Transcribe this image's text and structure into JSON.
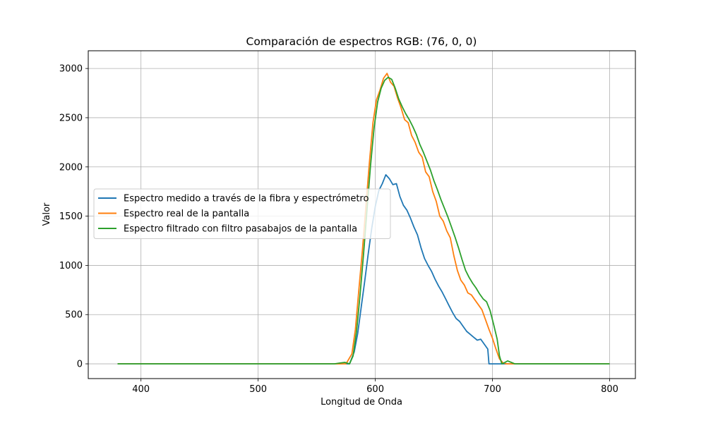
{
  "chart_data": {
    "type": "line",
    "title": "Comparación de espectros RGB: (76, 0, 0)",
    "xlabel": "Longitud de Onda",
    "ylabel": "Valor",
    "xlim": [
      355,
      822
    ],
    "ylim": [
      -150,
      3180
    ],
    "xticks": [
      400,
      500,
      600,
      700,
      800
    ],
    "yticks": [
      0,
      500,
      1000,
      1500,
      2000,
      2500,
      3000
    ],
    "xtick_labels": [
      "400",
      "500",
      "600",
      "700",
      "800"
    ],
    "ytick_labels": [
      "0",
      "500",
      "1000",
      "1500",
      "2000",
      "2500",
      "3000"
    ],
    "grid": true,
    "legend_position": "center-left",
    "series": [
      {
        "name": "Espectro medido a través de la fibra y espectrómetro",
        "color": "#1f77b4",
        "x": [
          380,
          570,
          578,
          582,
          585,
          588,
          591,
          594,
          597,
          600,
          603,
          606,
          609,
          612,
          615,
          618,
          621,
          624,
          627,
          630,
          633,
          636,
          639,
          642,
          645,
          648,
          651,
          654,
          657,
          660,
          663,
          666,
          669,
          672,
          675,
          678,
          681,
          684,
          687,
          690,
          693,
          696,
          697,
          800
        ],
        "y": [
          0,
          0,
          0,
          120,
          310,
          580,
          840,
          1120,
          1380,
          1600,
          1760,
          1830,
          1920,
          1880,
          1820,
          1830,
          1700,
          1610,
          1560,
          1480,
          1390,
          1310,
          1180,
          1070,
          1000,
          940,
          860,
          790,
          730,
          660,
          590,
          520,
          460,
          430,
          380,
          330,
          300,
          270,
          240,
          250,
          200,
          150,
          0,
          0
        ]
      },
      {
        "name": "Espectro real de la pantalla",
        "color": "#ff7f0e",
        "x": [
          380,
          575,
          580,
          583,
          586,
          589,
          592,
          595,
          598,
          601,
          604,
          607,
          610,
          613,
          616,
          619,
          622,
          625,
          628,
          631,
          634,
          637,
          640,
          643,
          646,
          649,
          652,
          655,
          658,
          661,
          664,
          667,
          670,
          673,
          676,
          679,
          682,
          685,
          688,
          691,
          694,
          697,
          700,
          703,
          706,
          709,
          712,
          715,
          800
        ],
        "y": [
          0,
          0,
          100,
          350,
          760,
          1150,
          1600,
          2050,
          2450,
          2680,
          2780,
          2900,
          2950,
          2860,
          2820,
          2700,
          2600,
          2480,
          2450,
          2320,
          2250,
          2150,
          2100,
          1950,
          1900,
          1750,
          1650,
          1500,
          1450,
          1350,
          1280,
          1100,
          950,
          850,
          800,
          720,
          700,
          650,
          600,
          550,
          450,
          350,
          260,
          150,
          50,
          10,
          0,
          0,
          0
        ]
      },
      {
        "name": "Espectro filtrado con filtro pasabajos de la pantalla",
        "color": "#2ca02c",
        "x": [
          380,
          565,
          570,
          574,
          578,
          581,
          584,
          587,
          590,
          593,
          596,
          599,
          602,
          605,
          608,
          611,
          614,
          617,
          620,
          623,
          626,
          629,
          632,
          635,
          638,
          641,
          644,
          647,
          650,
          653,
          656,
          659,
          662,
          665,
          668,
          671,
          674,
          677,
          680,
          683,
          686,
          689,
          692,
          695,
          698,
          701,
          704,
          706,
          708,
          710,
          713,
          716,
          719,
          800
        ],
        "y": [
          0,
          0,
          8,
          15,
          0,
          80,
          330,
          700,
          1120,
          1580,
          2020,
          2400,
          2660,
          2800,
          2880,
          2910,
          2890,
          2800,
          2690,
          2610,
          2540,
          2480,
          2410,
          2330,
          2230,
          2150,
          2060,
          1970,
          1860,
          1770,
          1670,
          1580,
          1490,
          1390,
          1290,
          1180,
          1060,
          950,
          880,
          820,
          770,
          710,
          660,
          630,
          540,
          400,
          250,
          80,
          0,
          10,
          30,
          15,
          0,
          0
        ]
      }
    ]
  }
}
